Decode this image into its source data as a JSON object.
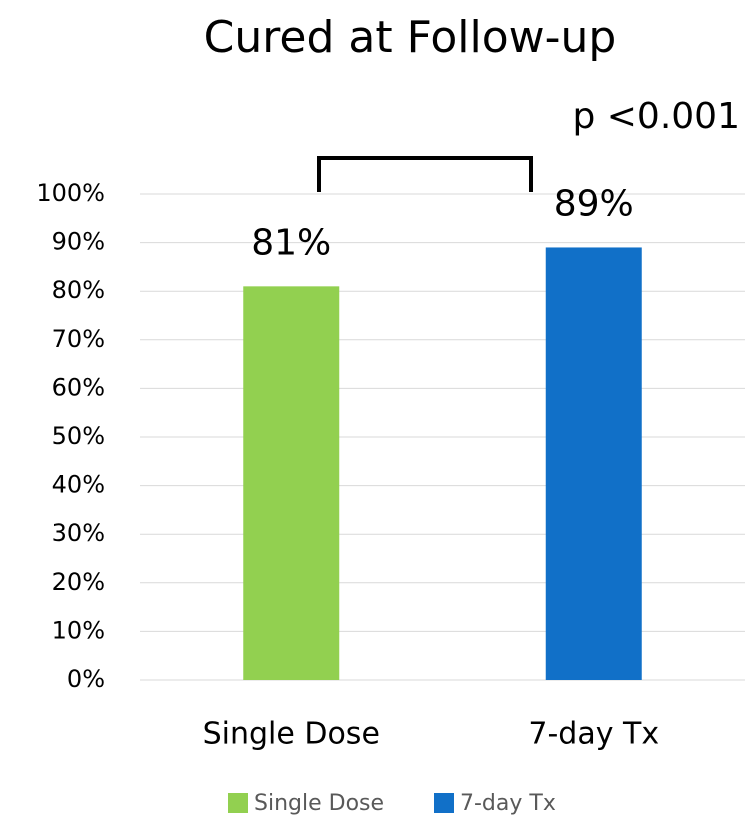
{
  "chart_data": {
    "type": "bar",
    "title": "Cured at Follow-up",
    "annotation": "p <0.001",
    "categories": [
      "Single Dose",
      "7-day Tx"
    ],
    "values": [
      81,
      89
    ],
    "value_labels": [
      "81%",
      "89%"
    ],
    "colors": [
      "#92d050",
      "#1170c8"
    ],
    "ylim": [
      0,
      100
    ],
    "yticks": [
      {
        "value": 0,
        "label": "0%"
      },
      {
        "value": 10,
        "label": "10%"
      },
      {
        "value": 20,
        "label": "20%"
      },
      {
        "value": 30,
        "label": "30%"
      },
      {
        "value": 40,
        "label": "40%"
      },
      {
        "value": 50,
        "label": "50%"
      },
      {
        "value": 60,
        "label": "60%"
      },
      {
        "value": 70,
        "label": "70%"
      },
      {
        "value": 80,
        "label": "80%"
      },
      {
        "value": 90,
        "label": "90%"
      },
      {
        "value": 100,
        "label": "100%"
      }
    ],
    "grid": true,
    "legend": "bottom"
  }
}
